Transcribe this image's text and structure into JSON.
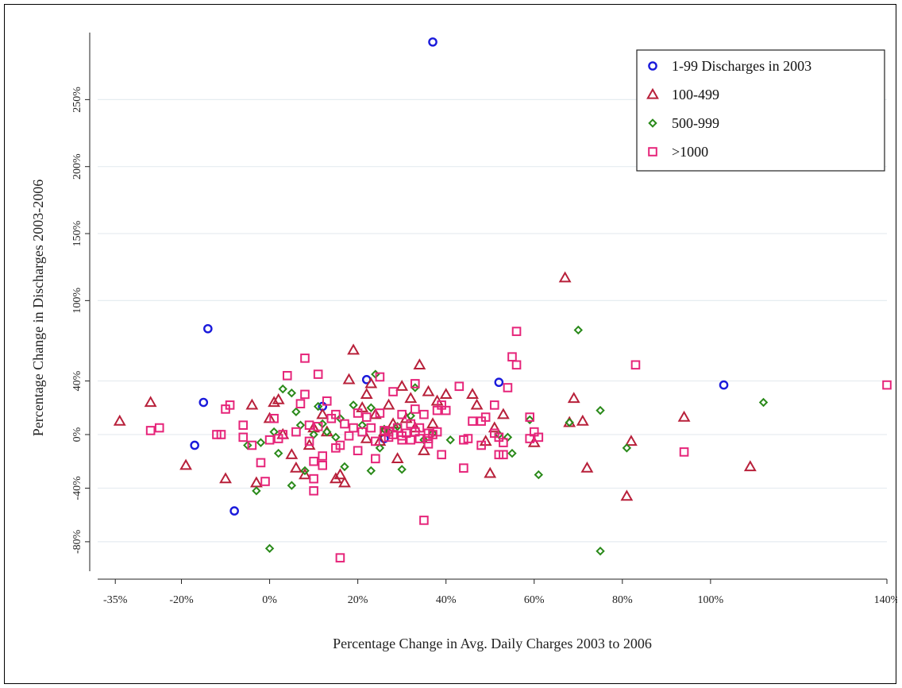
{
  "chart_data": {
    "type": "scatter",
    "xlabel": "Percentage Change in Avg. Daily Charges 2003 to 2006",
    "ylabel": "Percentage Change in Discharges 2003-2006",
    "xlim": [
      -0.39,
      1.4
    ],
    "ylim": [
      -1.02,
      3.03
    ],
    "x_ticks": [
      {
        "v": -0.35,
        "label": "-35%"
      },
      {
        "v": -0.2,
        "label": "-20%"
      },
      {
        "v": 0,
        "label": "0%"
      },
      {
        "v": 0.2,
        "label": "20%"
      },
      {
        "v": 0.4,
        "label": "40%"
      },
      {
        "v": 0.6,
        "label": "60%"
      },
      {
        "v": 0.8,
        "label": "80%"
      },
      {
        "v": 1.0,
        "label": "100%"
      },
      {
        "v": 1.4,
        "label": "140%"
      }
    ],
    "y_ticks": [
      {
        "v": -0.8,
        "label": "-80%"
      },
      {
        "v": -0.4,
        "label": "-40%"
      },
      {
        "v": 0,
        "label": "0%"
      },
      {
        "v": 0.4,
        "label": "40%"
      },
      {
        "v": 1.0,
        "label": "100%"
      },
      {
        "v": 1.5,
        "label": "150%"
      },
      {
        "v": 2.0,
        "label": "200%"
      },
      {
        "v": 2.5,
        "label": "250%"
      }
    ],
    "grid": true,
    "legend_position": "top-right",
    "series": [
      {
        "name": "1-99 Discharges in 2003",
        "marker": "circle",
        "color": "#1a1adb",
        "points": [
          [
            0.37,
            2.93
          ],
          [
            -0.14,
            0.79
          ],
          [
            -0.15,
            0.24
          ],
          [
            -0.17,
            -0.08
          ],
          [
            -0.08,
            -0.57
          ],
          [
            0.22,
            0.41
          ],
          [
            0.12,
            0.21
          ],
          [
            0.52,
            0.39
          ],
          [
            1.03,
            0.37
          ],
          [
            0.26,
            -0.03
          ]
        ]
      },
      {
        "name": "100-499",
        "marker": "triangle",
        "color": "#b8203a",
        "points": [
          [
            -0.34,
            0.1
          ],
          [
            -0.27,
            0.24
          ],
          [
            -0.19,
            -0.23
          ],
          [
            -0.1,
            -0.33
          ],
          [
            -0.04,
            0.22
          ],
          [
            -0.03,
            -0.36
          ],
          [
            0.0,
            0.12
          ],
          [
            0.01,
            0.24
          ],
          [
            0.02,
            0.26
          ],
          [
            0.05,
            -0.15
          ],
          [
            0.06,
            -0.25
          ],
          [
            0.08,
            -0.3
          ],
          [
            0.1,
            0.05
          ],
          [
            0.12,
            0.15
          ],
          [
            0.13,
            0.02
          ],
          [
            0.15,
            -0.33
          ],
          [
            0.17,
            -0.36
          ],
          [
            0.18,
            0.41
          ],
          [
            0.19,
            0.63
          ],
          [
            0.21,
            0.2
          ],
          [
            0.22,
            0.3
          ],
          [
            0.23,
            0.38
          ],
          [
            0.24,
            0.15
          ],
          [
            0.25,
            -0.05
          ],
          [
            0.26,
            0.02
          ],
          [
            0.27,
            0.22
          ],
          [
            0.28,
            0.08
          ],
          [
            0.29,
            -0.18
          ],
          [
            0.3,
            0.36
          ],
          [
            0.31,
            0.12
          ],
          [
            0.32,
            0.27
          ],
          [
            0.33,
            0.05
          ],
          [
            0.34,
            0.52
          ],
          [
            0.35,
            -0.12
          ],
          [
            0.36,
            0.32
          ],
          [
            0.37,
            0.08
          ],
          [
            0.38,
            0.25
          ],
          [
            0.4,
            0.3
          ],
          [
            0.46,
            0.3
          ],
          [
            0.47,
            0.22
          ],
          [
            0.49,
            -0.05
          ],
          [
            0.5,
            -0.29
          ],
          [
            0.51,
            0.05
          ],
          [
            0.53,
            0.15
          ],
          [
            0.6,
            -0.06
          ],
          [
            0.67,
            1.17
          ],
          [
            0.68,
            0.09
          ],
          [
            0.69,
            0.27
          ],
          [
            0.71,
            0.1
          ],
          [
            0.72,
            -0.25
          ],
          [
            0.81,
            -0.46
          ],
          [
            0.82,
            -0.05
          ],
          [
            0.94,
            0.13
          ],
          [
            1.09,
            -0.24
          ],
          [
            0.16,
            -0.3
          ],
          [
            0.22,
            -0.03
          ],
          [
            0.03,
            0.0
          ],
          [
            0.09,
            -0.08
          ]
        ]
      },
      {
        "name": "500-999",
        "marker": "diamond",
        "color": "#2a8a1a",
        "points": [
          [
            -0.05,
            -0.08
          ],
          [
            -0.03,
            -0.42
          ],
          [
            -0.02,
            -0.06
          ],
          [
            0.0,
            -0.85
          ],
          [
            0.01,
            0.02
          ],
          [
            0.02,
            -0.14
          ],
          [
            0.03,
            0.34
          ],
          [
            0.05,
            0.31
          ],
          [
            0.06,
            0.17
          ],
          [
            0.07,
            0.07
          ],
          [
            0.05,
            -0.38
          ],
          [
            0.08,
            -0.27
          ],
          [
            0.1,
            0.0
          ],
          [
            0.11,
            0.21
          ],
          [
            0.13,
            0.02
          ],
          [
            0.15,
            -0.02
          ],
          [
            0.16,
            0.12
          ],
          [
            0.17,
            -0.24
          ],
          [
            0.19,
            0.22
          ],
          [
            0.21,
            0.07
          ],
          [
            0.23,
            0.2
          ],
          [
            0.24,
            0.45
          ],
          [
            0.23,
            -0.27
          ],
          [
            0.25,
            -0.1
          ],
          [
            0.27,
            0.02
          ],
          [
            0.29,
            0.06
          ],
          [
            0.3,
            -0.26
          ],
          [
            0.32,
            0.14
          ],
          [
            0.33,
            0.35
          ],
          [
            0.35,
            -0.04
          ],
          [
            0.37,
            0.01
          ],
          [
            0.41,
            -0.04
          ],
          [
            0.52,
            0.0
          ],
          [
            0.54,
            -0.02
          ],
          [
            0.55,
            -0.14
          ],
          [
            0.59,
            0.11
          ],
          [
            0.61,
            -0.3
          ],
          [
            0.68,
            0.09
          ],
          [
            0.7,
            0.78
          ],
          [
            0.75,
            0.18
          ],
          [
            0.75,
            -0.87
          ],
          [
            0.81,
            -0.1
          ],
          [
            1.12,
            0.24
          ],
          [
            0.26,
            0.04
          ],
          [
            0.12,
            0.08
          ]
        ]
      },
      {
        "name": ">1000",
        "marker": "square",
        "color": "#e6257a",
        "points": [
          [
            -0.27,
            0.03
          ],
          [
            -0.25,
            0.05
          ],
          [
            -0.12,
            0.0
          ],
          [
            -0.11,
            0.0
          ],
          [
            -0.1,
            0.19
          ],
          [
            -0.09,
            0.22
          ],
          [
            -0.06,
            0.07
          ],
          [
            -0.06,
            -0.02
          ],
          [
            -0.04,
            -0.08
          ],
          [
            -0.02,
            -0.21
          ],
          [
            -0.01,
            -0.35
          ],
          [
            0.0,
            -0.04
          ],
          [
            0.01,
            0.12
          ],
          [
            0.02,
            -0.03
          ],
          [
            0.03,
            0.0
          ],
          [
            0.04,
            0.44
          ],
          [
            0.06,
            0.02
          ],
          [
            0.07,
            0.23
          ],
          [
            0.08,
            0.57
          ],
          [
            0.08,
            0.3
          ],
          [
            0.09,
            -0.05
          ],
          [
            0.09,
            0.07
          ],
          [
            0.1,
            -0.2
          ],
          [
            0.1,
            -0.33
          ],
          [
            0.1,
            -0.42
          ],
          [
            0.11,
            0.45
          ],
          [
            0.11,
            0.06
          ],
          [
            0.12,
            -0.16
          ],
          [
            0.12,
            -0.23
          ],
          [
            0.13,
            0.25
          ],
          [
            0.14,
            0.12
          ],
          [
            0.15,
            -0.1
          ],
          [
            0.15,
            0.15
          ],
          [
            0.16,
            -0.08
          ],
          [
            0.16,
            -0.92
          ],
          [
            0.17,
            0.08
          ],
          [
            0.18,
            -0.01
          ],
          [
            0.19,
            0.05
          ],
          [
            0.2,
            0.16
          ],
          [
            0.2,
            -0.12
          ],
          [
            0.21,
            0.02
          ],
          [
            0.22,
            0.13
          ],
          [
            0.23,
            0.05
          ],
          [
            0.24,
            -0.18
          ],
          [
            0.25,
            0.43
          ],
          [
            0.25,
            0.16
          ],
          [
            0.26,
            0.03
          ],
          [
            0.27,
            -0.02
          ],
          [
            0.27,
            0.02
          ],
          [
            0.28,
            0.32
          ],
          [
            0.28,
            0.0
          ],
          [
            0.29,
            0.05
          ],
          [
            0.3,
            0.15
          ],
          [
            0.3,
            -0.01
          ],
          [
            0.31,
            0.01
          ],
          [
            0.32,
            0.08
          ],
          [
            0.32,
            -0.04
          ],
          [
            0.33,
            0.38
          ],
          [
            0.33,
            0.19
          ],
          [
            0.33,
            0.02
          ],
          [
            0.34,
            0.05
          ],
          [
            0.34,
            -0.03
          ],
          [
            0.35,
            -0.64
          ],
          [
            0.35,
            0.15
          ],
          [
            0.36,
            0.01
          ],
          [
            0.36,
            -0.03
          ],
          [
            0.37,
            0.0
          ],
          [
            0.38,
            0.18
          ],
          [
            0.38,
            0.02
          ],
          [
            0.39,
            0.22
          ],
          [
            0.39,
            -0.15
          ],
          [
            0.4,
            0.18
          ],
          [
            0.43,
            0.36
          ],
          [
            0.44,
            -0.25
          ],
          [
            0.44,
            -0.04
          ],
          [
            0.45,
            -0.03
          ],
          [
            0.46,
            0.1
          ],
          [
            0.48,
            0.1
          ],
          [
            0.48,
            -0.08
          ],
          [
            0.49,
            0.13
          ],
          [
            0.51,
            0.22
          ],
          [
            0.51,
            0.01
          ],
          [
            0.52,
            -0.15
          ],
          [
            0.52,
            -0.02
          ],
          [
            0.53,
            -0.06
          ],
          [
            0.53,
            -0.15
          ],
          [
            0.54,
            0.35
          ],
          [
            0.55,
            0.58
          ],
          [
            0.56,
            0.52
          ],
          [
            0.56,
            0.77
          ],
          [
            0.59,
            -0.03
          ],
          [
            0.59,
            0.13
          ],
          [
            0.6,
            0.02
          ],
          [
            0.61,
            -0.02
          ],
          [
            0.83,
            0.52
          ],
          [
            0.94,
            -0.13
          ],
          [
            1.4,
            0.37
          ],
          [
            0.24,
            -0.05
          ],
          [
            0.3,
            -0.04
          ],
          [
            0.36,
            -0.07
          ]
        ]
      }
    ]
  }
}
